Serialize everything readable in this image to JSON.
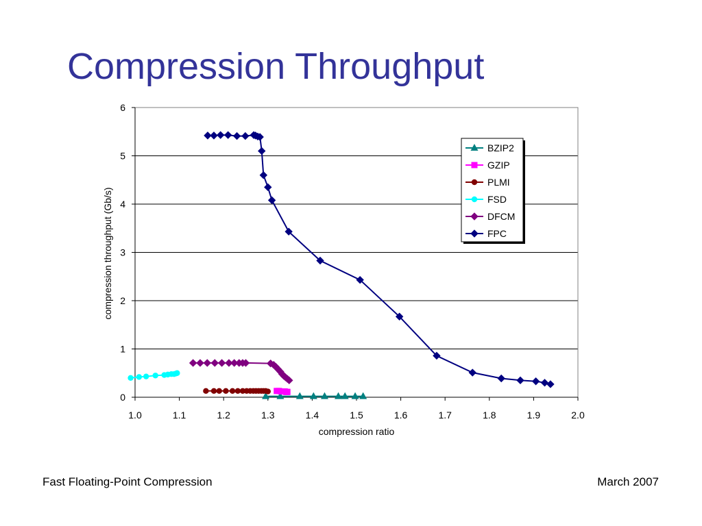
{
  "slide": {
    "title": "Compression Throughput",
    "footer_left": "Fast Floating-Point Compression",
    "footer_right": "March 2007"
  },
  "chart_data": {
    "type": "line",
    "xlabel": "compression ratio",
    "ylabel": "compression throughput (Gb/s)",
    "xlim": [
      1.0,
      2.0
    ],
    "ylim": [
      0,
      6
    ],
    "xticks": [
      "1.0",
      "1.1",
      "1.2",
      "1.3",
      "1.4",
      "1.5",
      "1.6",
      "1.7",
      "1.8",
      "1.9",
      "2.0"
    ],
    "yticks": [
      "0",
      "1",
      "2",
      "3",
      "4",
      "5",
      "6"
    ],
    "grid": "horizontal",
    "legend_position": "top-right",
    "series": [
      {
        "name": "BZIP2",
        "color": "#008080",
        "marker": "triangle",
        "x": [
          1.295,
          1.328,
          1.372,
          1.403,
          1.428,
          1.459,
          1.474,
          1.497,
          1.515
        ],
        "y": [
          0.02,
          0.02,
          0.02,
          0.02,
          0.02,
          0.02,
          0.02,
          0.02,
          0.02
        ]
      },
      {
        "name": "GZIP",
        "color": "#ff00ff",
        "marker": "square",
        "x": [
          1.32,
          1.325,
          1.33,
          1.335,
          1.338,
          1.341,
          1.343,
          1.344
        ],
        "y": [
          0.13,
          0.13,
          0.12,
          0.12,
          0.12,
          0.11,
          0.11,
          0.11
        ]
      },
      {
        "name": "PLMI",
        "color": "#800000",
        "marker": "circle",
        "x": [
          1.16,
          1.178,
          1.19,
          1.205,
          1.22,
          1.232,
          1.243,
          1.252,
          1.26,
          1.267,
          1.273,
          1.279,
          1.285,
          1.29,
          1.295,
          1.3
        ],
        "y": [
          0.13,
          0.13,
          0.13,
          0.13,
          0.13,
          0.13,
          0.13,
          0.13,
          0.13,
          0.13,
          0.13,
          0.13,
          0.13,
          0.13,
          0.13,
          0.12
        ]
      },
      {
        "name": "FSD",
        "color": "#00ffff",
        "marker": "circle",
        "x": [
          0.99,
          1.009,
          1.025,
          1.046,
          1.066,
          1.074,
          1.082,
          1.088,
          1.092,
          1.095
        ],
        "y": [
          0.4,
          0.42,
          0.43,
          0.45,
          0.46,
          0.47,
          0.48,
          0.48,
          0.49,
          0.5
        ]
      },
      {
        "name": "DFCM",
        "color": "#800080",
        "marker": "diamond",
        "x": [
          1.131,
          1.147,
          1.163,
          1.18,
          1.196,
          1.212,
          1.224,
          1.235,
          1.243,
          1.25,
          1.306,
          1.313,
          1.318,
          1.323,
          1.328,
          1.332,
          1.336,
          1.34,
          1.344,
          1.348
        ],
        "y": [
          0.71,
          0.71,
          0.71,
          0.71,
          0.71,
          0.71,
          0.71,
          0.71,
          0.71,
          0.71,
          0.7,
          0.67,
          0.63,
          0.58,
          0.53,
          0.48,
          0.44,
          0.41,
          0.38,
          0.35
        ]
      },
      {
        "name": "FPC",
        "color": "#000080",
        "marker": "diamond",
        "x": [
          1.164,
          1.178,
          1.193,
          1.21,
          1.23,
          1.249,
          1.268,
          1.272,
          1.277,
          1.282,
          1.286,
          1.29,
          1.3,
          1.309,
          1.347,
          1.418,
          1.508,
          1.597,
          1.681,
          1.762,
          1.827,
          1.87,
          1.905,
          1.925,
          1.938
        ],
        "y": [
          5.42,
          5.42,
          5.43,
          5.43,
          5.41,
          5.41,
          5.43,
          5.42,
          5.4,
          5.39,
          5.1,
          4.6,
          4.35,
          4.08,
          3.43,
          2.83,
          2.43,
          1.67,
          0.86,
          0.51,
          0.39,
          0.35,
          0.33,
          0.3,
          0.27
        ]
      }
    ]
  }
}
